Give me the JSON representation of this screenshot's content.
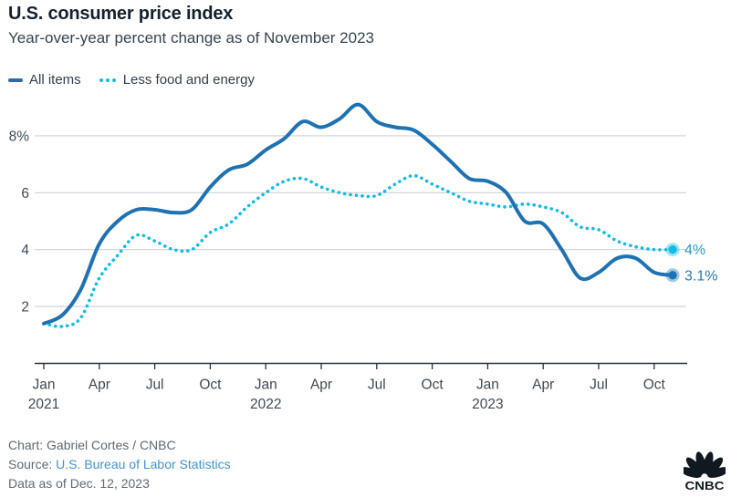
{
  "chart_data": {
    "type": "line",
    "title": "U.S. consumer price index",
    "subtitle": "Year-over-year percent change as of November 2023",
    "x_labels": [
      "Jan 2021",
      "Feb 2021",
      "Mar 2021",
      "Apr 2021",
      "May 2021",
      "Jun 2021",
      "Jul 2021",
      "Aug 2021",
      "Sep 2021",
      "Oct 2021",
      "Nov 2021",
      "Dec 2021",
      "Jan 2022",
      "Feb 2022",
      "Mar 2022",
      "Apr 2022",
      "May 2022",
      "Jun 2022",
      "Jul 2022",
      "Aug 2022",
      "Sep 2022",
      "Oct 2022",
      "Nov 2022",
      "Dec 2022",
      "Jan 2023",
      "Feb 2023",
      "Mar 2023",
      "Apr 2023",
      "May 2023",
      "Jun 2023",
      "Jul 2023",
      "Aug 2023",
      "Sep 2023",
      "Oct 2023",
      "Nov 2023"
    ],
    "ylim": [
      0,
      9.3
    ],
    "grid": "horizontal",
    "legend_position": "top",
    "yticks": [
      {
        "v": 2,
        "label": "2"
      },
      {
        "v": 4,
        "label": "4"
      },
      {
        "v": 6,
        "label": "6"
      },
      {
        "v": 8,
        "label": "8%"
      }
    ],
    "xticks": [
      {
        "m": 0,
        "label": "Jan",
        "year": "2021"
      },
      {
        "m": 3,
        "label": "Apr"
      },
      {
        "m": 6,
        "label": "Jul"
      },
      {
        "m": 9,
        "label": "Oct"
      },
      {
        "m": 12,
        "label": "Jan",
        "year": "2022"
      },
      {
        "m": 15,
        "label": "Apr"
      },
      {
        "m": 18,
        "label": "Jul"
      },
      {
        "m": 21,
        "label": "Oct"
      },
      {
        "m": 24,
        "label": "Jan",
        "year": "2023"
      },
      {
        "m": 27,
        "label": "Apr"
      },
      {
        "m": 30,
        "label": "Jul"
      },
      {
        "m": 33,
        "label": "Oct"
      }
    ],
    "series": [
      {
        "name": "All items",
        "style": "solid",
        "color": "#1f72b2",
        "end_label": "3.1%",
        "end_label_color": "#2b79b5",
        "values": [
          1.4,
          1.7,
          2.6,
          4.2,
          5.0,
          5.4,
          5.4,
          5.3,
          5.4,
          6.2,
          6.8,
          7.0,
          7.5,
          7.9,
          8.5,
          8.3,
          8.6,
          9.1,
          8.5,
          8.3,
          8.2,
          7.7,
          7.1,
          6.5,
          6.4,
          6.0,
          5.0,
          4.9,
          4.0,
          3.0,
          3.2,
          3.7,
          3.7,
          3.2,
          3.1
        ]
      },
      {
        "name": "Less food and energy",
        "style": "dotted",
        "color": "#13bce4",
        "end_label": "4%",
        "end_label_color": "#2b9acb",
        "values": [
          1.4,
          1.3,
          1.6,
          3.0,
          3.8,
          4.5,
          4.3,
          4.0,
          4.0,
          4.6,
          4.9,
          5.5,
          6.0,
          6.4,
          6.5,
          6.2,
          6.0,
          5.9,
          5.9,
          6.3,
          6.6,
          6.3,
          6.0,
          5.7,
          5.6,
          5.5,
          5.6,
          5.5,
          5.3,
          4.8,
          4.7,
          4.3,
          4.1,
          4.0,
          4.0
        ]
      }
    ],
    "colors": {
      "all_items": "#1f72b2",
      "less_food_and_energy": "#13bce4",
      "gridline": "#ccd2d5",
      "axis": "#29313a",
      "tick_text": "#3f4a54"
    }
  },
  "footer": {
    "credit": "Chart: Gabriel Cortes / CNBC",
    "source_prefix": "Source: ",
    "source_link": "U.S. Bureau of Labor Statistics",
    "data_as_of": "Data as of Dec. 12, 2023",
    "logo_text": "CNBC"
  }
}
